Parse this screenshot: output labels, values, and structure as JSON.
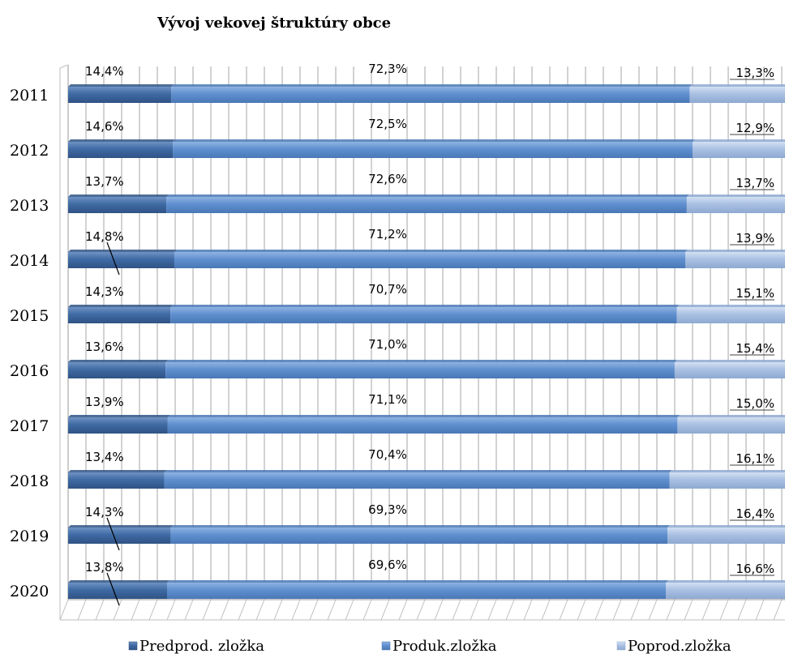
{
  "chart_data": {
    "type": "bar",
    "orientation": "horizontal",
    "stacked": "percent",
    "title": "Vývoj vekovej štruktúry obce",
    "categories": [
      "2011",
      "2012",
      "2013",
      "2014",
      "2015",
      "2016",
      "2017",
      "2018",
      "2019",
      "2020"
    ],
    "series": [
      {
        "name": "Predprod. zložka",
        "color": "#3f6aa3",
        "values": [
          14.4,
          14.6,
          13.7,
          14.8,
          14.3,
          13.6,
          13.9,
          13.4,
          14.3,
          13.8
        ],
        "labels": [
          "14,4%",
          "14,6%",
          "13,7%",
          "14,8%",
          "14,3%",
          "13,6%",
          "13,9%",
          "13,4%",
          "14,3%",
          "13,8%"
        ]
      },
      {
        "name": "Produk.zložka",
        "color": "#5f8fcf",
        "values": [
          72.3,
          72.5,
          72.6,
          71.2,
          70.7,
          71.0,
          71.1,
          70.4,
          69.3,
          69.6
        ],
        "labels": [
          "72,3%",
          "72,5%",
          "72,6%",
          "71,2%",
          "70,7%",
          "71,0%",
          "71,1%",
          "70,4%",
          "69,3%",
          "69,6%"
        ]
      },
      {
        "name": "Poprod.zložka",
        "color": "#a9c0e2",
        "values": [
          13.3,
          12.9,
          13.7,
          13.9,
          15.1,
          15.4,
          15.0,
          16.1,
          16.4,
          16.6
        ],
        "labels": [
          "13,3%",
          "12,9%",
          "13,7%",
          "13,9%",
          "15,1%",
          "15,4%",
          "15,0%",
          "16,1%",
          "16,4%",
          "16,6%"
        ]
      }
    ],
    "xlim": [
      0,
      100
    ],
    "grid": true,
    "legend_position": "bottom"
  }
}
